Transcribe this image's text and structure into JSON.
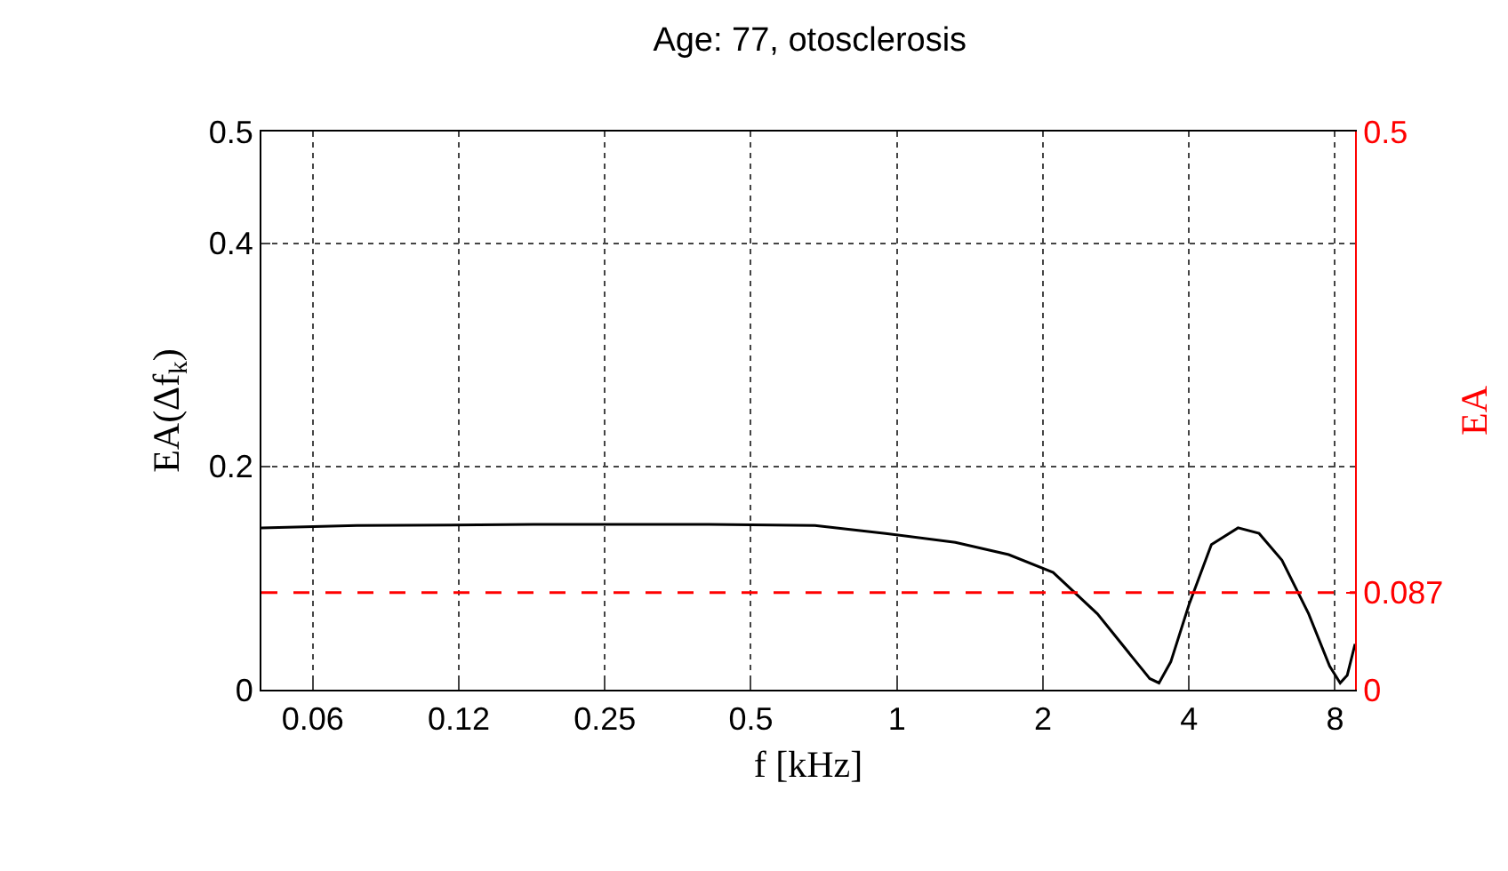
{
  "chart_data": {
    "type": "line",
    "title": "Age: 77, otosclerosis",
    "xlabel": "f [kHz]",
    "ylabel": "EA(Δf$_{k}$)",
    "y2label": "EA",
    "log": "x",
    "grid": true,
    "marker": "none",
    "line_style": "solid",
    "x": [
      0.049,
      0.077,
      0.178,
      0.41,
      0.678,
      0.948,
      1.32,
      1.7,
      2.1,
      2.59,
      3.06,
      3.32,
      3.47,
      3.67,
      4.0,
      4.45,
      5.05,
      5.58,
      6.22,
      7.06,
      7.8,
      8.2,
      8.48,
      8.8
    ],
    "series": [
      {
        "color": "#000000",
        "values": [
          0.145,
          0.147,
          0.148,
          0.148,
          0.147,
          0.14,
          0.132,
          0.121,
          0.105,
          0.068,
          0.029,
          0.01,
          0.006,
          0.025,
          0.076,
          0.13,
          0.145,
          0.14,
          0.116,
          0.068,
          0.021,
          0.006,
          0.013,
          0.041
        ]
      }
    ],
    "xlim": [
      0.049,
      8.8
    ],
    "xticks": [
      {
        "value": 0.0625,
        "label": "0.06"
      },
      {
        "value": 0.125,
        "label": "0.12"
      },
      0.25,
      0.5,
      1,
      2,
      4,
      8
    ],
    "ylim": [
      0,
      0.5
    ],
    "yticks": [
      0,
      0.2,
      0.4,
      0.5
    ],
    "y2lim": [
      0,
      0.5
    ],
    "y2ticks": [
      0,
      0.087,
      0.5
    ],
    "ref_lines": [
      {
        "axis": "y2",
        "value": 0.087,
        "color": "#ff0000",
        "line_style": "dashed"
      }
    ]
  }
}
